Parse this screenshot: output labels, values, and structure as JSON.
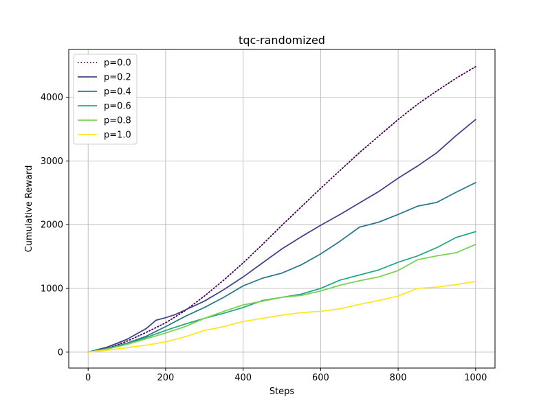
{
  "chart_data": {
    "type": "line",
    "title": "tqc-randomized",
    "xlabel": "Steps",
    "ylabel": "Cumulative Reward",
    "xlim": [
      -50,
      1050
    ],
    "ylim": [
      -250,
      4750
    ],
    "xticks": [
      0,
      200,
      400,
      600,
      800,
      1000
    ],
    "yticks": [
      0,
      1000,
      2000,
      3000,
      4000
    ],
    "grid": true,
    "legend_position": "top-left",
    "series": [
      {
        "name": "p=0.0",
        "color": "#440154",
        "dash": "dotted",
        "points": [
          [
            0,
            0
          ],
          [
            50,
            60
          ],
          [
            100,
            170
          ],
          [
            150,
            310
          ],
          [
            200,
            460
          ],
          [
            250,
            650
          ],
          [
            300,
            880
          ],
          [
            350,
            1130
          ],
          [
            400,
            1400
          ],
          [
            450,
            1690
          ],
          [
            500,
            1990
          ],
          [
            550,
            2280
          ],
          [
            600,
            2570
          ],
          [
            650,
            2850
          ],
          [
            700,
            3130
          ],
          [
            750,
            3390
          ],
          [
            800,
            3650
          ],
          [
            850,
            3890
          ],
          [
            900,
            4100
          ],
          [
            950,
            4300
          ],
          [
            1000,
            4480
          ]
        ]
      },
      {
        "name": "p=0.2",
        "color": "#414487",
        "dash": "solid",
        "points": [
          [
            0,
            0
          ],
          [
            50,
            80
          ],
          [
            100,
            200
          ],
          [
            150,
            370
          ],
          [
            175,
            500
          ],
          [
            200,
            540
          ],
          [
            225,
            590
          ],
          [
            250,
            660
          ],
          [
            300,
            800
          ],
          [
            350,
            980
          ],
          [
            400,
            1180
          ],
          [
            450,
            1400
          ],
          [
            500,
            1620
          ],
          [
            550,
            1810
          ],
          [
            600,
            1990
          ],
          [
            650,
            2160
          ],
          [
            700,
            2340
          ],
          [
            750,
            2520
          ],
          [
            800,
            2730
          ],
          [
            850,
            2920
          ],
          [
            900,
            3130
          ],
          [
            950,
            3400
          ],
          [
            1000,
            3650
          ]
        ]
      },
      {
        "name": "p=0.4",
        "color": "#2A788E",
        "dash": "solid",
        "points": [
          [
            0,
            0
          ],
          [
            50,
            60
          ],
          [
            100,
            140
          ],
          [
            150,
            250
          ],
          [
            200,
            400
          ],
          [
            250,
            560
          ],
          [
            300,
            700
          ],
          [
            350,
            860
          ],
          [
            400,
            1040
          ],
          [
            450,
            1160
          ],
          [
            500,
            1240
          ],
          [
            550,
            1370
          ],
          [
            600,
            1540
          ],
          [
            650,
            1740
          ],
          [
            700,
            1960
          ],
          [
            750,
            2040
          ],
          [
            800,
            2160
          ],
          [
            850,
            2290
          ],
          [
            900,
            2350
          ],
          [
            950,
            2510
          ],
          [
            1000,
            2660
          ]
        ]
      },
      {
        "name": "p=0.6",
        "color": "#22A884",
        "dash": "solid",
        "points": [
          [
            0,
            0
          ],
          [
            50,
            50
          ],
          [
            100,
            130
          ],
          [
            150,
            230
          ],
          [
            200,
            340
          ],
          [
            250,
            440
          ],
          [
            300,
            530
          ],
          [
            350,
            610
          ],
          [
            400,
            700
          ],
          [
            450,
            810
          ],
          [
            500,
            860
          ],
          [
            550,
            910
          ],
          [
            600,
            1000
          ],
          [
            650,
            1130
          ],
          [
            700,
            1210
          ],
          [
            750,
            1290
          ],
          [
            800,
            1410
          ],
          [
            850,
            1510
          ],
          [
            900,
            1640
          ],
          [
            950,
            1800
          ],
          [
            1000,
            1890
          ]
        ]
      },
      {
        "name": "p=0.8",
        "color": "#7AD151",
        "dash": "solid",
        "points": [
          [
            0,
            0
          ],
          [
            50,
            50
          ],
          [
            100,
            120
          ],
          [
            150,
            210
          ],
          [
            200,
            300
          ],
          [
            250,
            400
          ],
          [
            300,
            530
          ],
          [
            350,
            640
          ],
          [
            400,
            740
          ],
          [
            450,
            800
          ],
          [
            500,
            860
          ],
          [
            550,
            890
          ],
          [
            600,
            960
          ],
          [
            650,
            1050
          ],
          [
            700,
            1120
          ],
          [
            750,
            1180
          ],
          [
            800,
            1280
          ],
          [
            850,
            1450
          ],
          [
            900,
            1510
          ],
          [
            950,
            1560
          ],
          [
            1000,
            1690
          ]
        ]
      },
      {
        "name": "p=1.0",
        "color": "#FDE725",
        "dash": "solid",
        "points": [
          [
            0,
            0
          ],
          [
            50,
            30
          ],
          [
            100,
            70
          ],
          [
            150,
            110
          ],
          [
            200,
            160
          ],
          [
            250,
            240
          ],
          [
            300,
            340
          ],
          [
            350,
            400
          ],
          [
            400,
            480
          ],
          [
            450,
            530
          ],
          [
            500,
            580
          ],
          [
            550,
            620
          ],
          [
            600,
            640
          ],
          [
            650,
            680
          ],
          [
            700,
            750
          ],
          [
            750,
            810
          ],
          [
            800,
            880
          ],
          [
            850,
            1000
          ],
          [
            900,
            1020
          ],
          [
            950,
            1060
          ],
          [
            1000,
            1110
          ]
        ]
      }
    ]
  }
}
